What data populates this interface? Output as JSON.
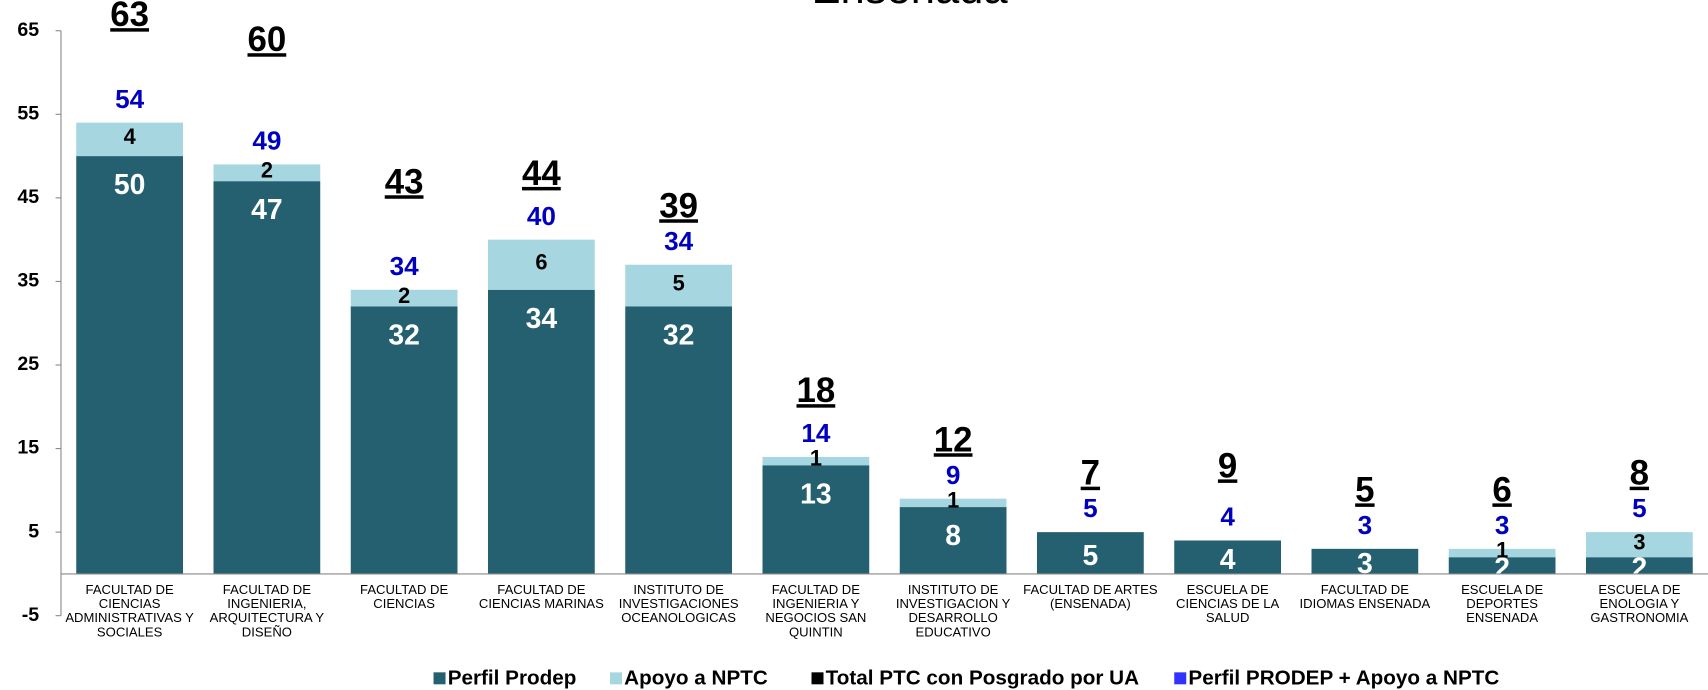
{
  "chart_data": {
    "type": "stacked-bar",
    "title": "Ensenada",
    "categories": [
      "FACULTAD DE CIENCIAS ADMINISTRATIVAS Y SOCIALES",
      "FACULTAD DE INGENIERIA, ARQUITECTURA Y DISEÑO",
      "FACULTAD DE CIENCIAS",
      "FACULTAD DE CIENCIAS MARINAS",
      "INSTITUTO DE INVESTIGACIONES OCEANOLOGICAS",
      "FACULTAD DE INGENIERIA Y NEGOCIOS SAN QUINTIN",
      "INSTITUTO DE INVESTIGACION Y DESARROLLO EDUCATIVO",
      "FACULTAD DE ARTES (ENSENADA)",
      "ESCUELA DE CIENCIAS DE LA SALUD",
      "FACULTAD DE IDIOMAS ENSENADA",
      "ESCUELA DE DEPORTES ENSENADA",
      "ESCUELA DE ENOLOGIA Y GASTRONOMIA"
    ],
    "series": [
      {
        "name": "Perfil Prodep",
        "color": "#24606f",
        "values": [
          50,
          47,
          32,
          34,
          32,
          13,
          8,
          5,
          4,
          3,
          2,
          2
        ]
      },
      {
        "name": "Apoyo a NPTC",
        "color": "#a6d6e0",
        "values": [
          4,
          2,
          2,
          6,
          5,
          1,
          1,
          0,
          0,
          0,
          1,
          3
        ]
      }
    ],
    "totals": [
      {
        "name": "Total PTC con Posgrado por UA",
        "color": "#000000",
        "values": [
          63,
          60,
          43,
          44,
          39,
          18,
          12,
          7,
          9,
          5,
          6,
          8
        ]
      },
      {
        "name": "Perfil PRODEP + Apoyo a NPTC",
        "color": "#0000c0",
        "values": [
          54,
          49,
          34,
          40,
          34,
          14,
          9,
          5,
          4,
          3,
          3,
          5
        ]
      }
    ],
    "ylim": [
      -5,
      65
    ],
    "yticks": [
      -5,
      5,
      15,
      25,
      35,
      45,
      55,
      65
    ],
    "grid": false
  }
}
